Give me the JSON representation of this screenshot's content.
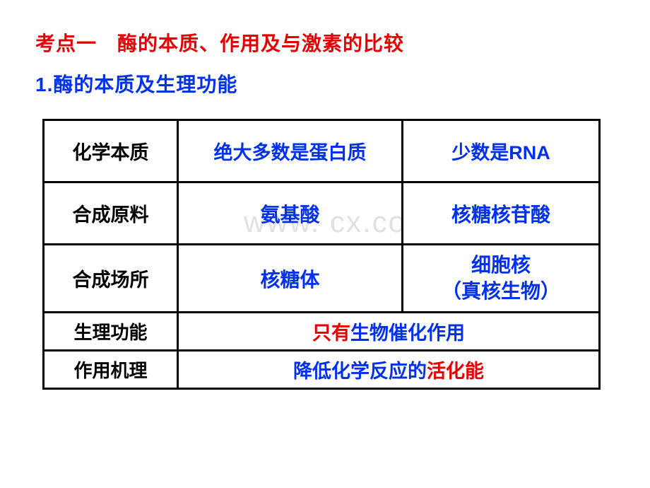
{
  "heading1": "考点一　酶的本质、作用及与激素的比较",
  "heading2": "1.酶的本质及生理功能",
  "watermark": "www.       cx.co",
  "table": {
    "rows": [
      {
        "label": "化学本质",
        "cell2": "绝大多数是蛋白质",
        "cell3": "少数是RNA"
      },
      {
        "label": "合成原料",
        "cell2": "氨基酸",
        "cell3": "核糖核苷酸"
      },
      {
        "label": "合成场所",
        "cell2": "核糖体",
        "cell3_a": "细胞核",
        "cell3_b": "（真核生物）"
      },
      {
        "label": "生理功能",
        "red": "只有",
        "rest": "生物催化作用"
      },
      {
        "label": "作用机理",
        "pre": "降低化学反应的",
        "red": "活化能"
      }
    ]
  }
}
